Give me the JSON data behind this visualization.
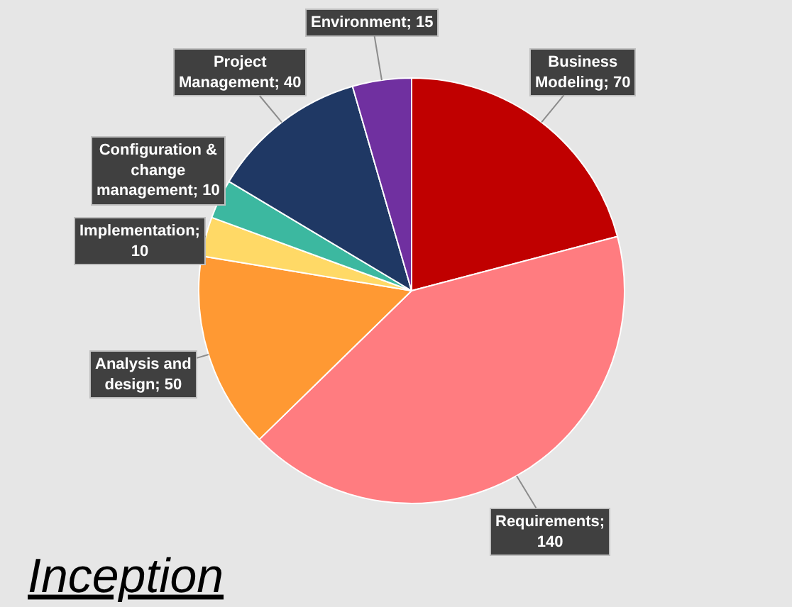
{
  "chart_data": {
    "type": "pie",
    "title": "Inception",
    "categories": [
      "Business Modeling; 70",
      "Requirements; 140",
      "Analysis and design; 50",
      "Implementation; 10",
      "Configuration  & change management; 10",
      "Project Management; 40",
      "Environment; 15"
    ],
    "values": [
      70,
      140,
      50,
      10,
      10,
      40,
      15
    ],
    "colors": [
      "#c00000",
      "#ff7c80",
      "#ff9933",
      "#ffd966",
      "#3cb8a0",
      "#1f3864",
      "#7030a0"
    ],
    "legend": false
  }
}
